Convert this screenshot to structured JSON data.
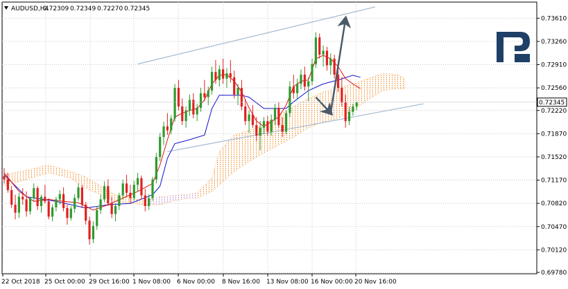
{
  "header": {
    "symbol": "AUDUSD,H4",
    "open": "0.72309",
    "high": "0.72349",
    "low": "0.72270",
    "close": "0.72345"
  },
  "brand": {
    "logo_letter": "R",
    "color": "#1e3f66"
  },
  "colors": {
    "bull_candle": "#2e9a2e",
    "bear_candle": "#e02020",
    "tenkan": "#e11010",
    "kijun": "#1010cc",
    "cloud_bull": "#f5a04a",
    "cloud_bear": "#c9a0dc",
    "channel": "#a9bfd4",
    "forecast_arrow": "#4a5a6a",
    "grid": "#c8c8c8"
  },
  "chart_data": {
    "type": "candlestick",
    "instrument": "AUDUSD",
    "timeframe": "H4",
    "ylim": [
      0.6978,
      0.7378
    ],
    "y_ticks": [
      "0.73610",
      "0.73260",
      "0.72910",
      "0.72560",
      "0.72220",
      "0.71870",
      "0.71520",
      "0.71170",
      "0.70820",
      "0.70470",
      "0.70120",
      "0.69780"
    ],
    "x_ticks": [
      "22 Oct 2018",
      "25 Oct 00:00",
      "29 Oct 16:00",
      "1 Nov 08:00",
      "6 Nov 00:00",
      "8 Nov 16:00",
      "13 Nov 08:00",
      "16 Nov 00:00",
      "20 Nov 16:00"
    ],
    "current_price": "0.72345",
    "grid": true,
    "series_key": [
      {
        "id": "tenkan",
        "color": "#e11010"
      },
      {
        "id": "kijun",
        "color": "#1010cc"
      },
      {
        "id": "cloud",
        "color": "#f5a04a"
      }
    ],
    "ohlc": [
      [
        0.7123,
        0.7135,
        0.7112,
        0.7118
      ],
      [
        0.7118,
        0.7128,
        0.7098,
        0.7102
      ],
      [
        0.7102,
        0.7108,
        0.7075,
        0.708
      ],
      [
        0.708,
        0.7095,
        0.7058,
        0.7068
      ],
      [
        0.7068,
        0.7098,
        0.706,
        0.7092
      ],
      [
        0.7092,
        0.7105,
        0.708,
        0.7088
      ],
      [
        0.7088,
        0.71,
        0.7062,
        0.707
      ],
      [
        0.707,
        0.7092,
        0.7065,
        0.709
      ],
      [
        0.709,
        0.7112,
        0.7085,
        0.7105
      ],
      [
        0.7105,
        0.7108,
        0.7072,
        0.7078
      ],
      [
        0.7078,
        0.7095,
        0.7068,
        0.7092
      ],
      [
        0.7092,
        0.711,
        0.7082,
        0.7085
      ],
      [
        0.7085,
        0.709,
        0.7058,
        0.7062
      ],
      [
        0.7062,
        0.708,
        0.7055,
        0.7076
      ],
      [
        0.7076,
        0.7092,
        0.707,
        0.7088
      ],
      [
        0.7088,
        0.7102,
        0.708,
        0.7096
      ],
      [
        0.7096,
        0.7106,
        0.707,
        0.7075
      ],
      [
        0.7075,
        0.708,
        0.705,
        0.706
      ],
      [
        0.706,
        0.7078,
        0.7056,
        0.7074
      ],
      [
        0.7074,
        0.7096,
        0.7068,
        0.709
      ],
      [
        0.709,
        0.7112,
        0.7086,
        0.7106
      ],
      [
        0.7106,
        0.711,
        0.7075,
        0.708
      ],
      [
        0.708,
        0.7084,
        0.705,
        0.7056
      ],
      [
        0.7056,
        0.7062,
        0.702,
        0.7028
      ],
      [
        0.7028,
        0.7055,
        0.7022,
        0.7048
      ],
      [
        0.7048,
        0.7078,
        0.7042,
        0.7072
      ],
      [
        0.7072,
        0.7095,
        0.7066,
        0.7088
      ],
      [
        0.7088,
        0.7115,
        0.7084,
        0.7108
      ],
      [
        0.7108,
        0.7118,
        0.7078,
        0.7082
      ],
      [
        0.7082,
        0.7092,
        0.706,
        0.7066
      ],
      [
        0.7066,
        0.7082,
        0.7055,
        0.7078
      ],
      [
        0.7078,
        0.7098,
        0.7072,
        0.7094
      ],
      [
        0.7094,
        0.7118,
        0.7088,
        0.7112
      ],
      [
        0.7112,
        0.7125,
        0.7092,
        0.7098
      ],
      [
        0.7098,
        0.711,
        0.7082,
        0.709
      ],
      [
        0.709,
        0.7116,
        0.7086,
        0.711
      ],
      [
        0.711,
        0.7128,
        0.71,
        0.712
      ],
      [
        0.712,
        0.7124,
        0.7088,
        0.7094
      ],
      [
        0.7094,
        0.7104,
        0.707,
        0.7078
      ],
      [
        0.7078,
        0.7096,
        0.7072,
        0.709
      ],
      [
        0.709,
        0.7122,
        0.7086,
        0.7118
      ],
      [
        0.7118,
        0.7158,
        0.7112,
        0.7152
      ],
      [
        0.7152,
        0.7188,
        0.7146,
        0.7182
      ],
      [
        0.7182,
        0.7205,
        0.717,
        0.7198
      ],
      [
        0.7198,
        0.7218,
        0.7185,
        0.7192
      ],
      [
        0.7192,
        0.7215,
        0.7186,
        0.721
      ],
      [
        0.721,
        0.7262,
        0.7205,
        0.7256
      ],
      [
        0.7256,
        0.7268,
        0.7222,
        0.7228
      ],
      [
        0.7228,
        0.724,
        0.72,
        0.7206
      ],
      [
        0.7206,
        0.7228,
        0.7196,
        0.7222
      ],
      [
        0.7222,
        0.7246,
        0.7214,
        0.7238
      ],
      [
        0.7238,
        0.7248,
        0.721,
        0.7216
      ],
      [
        0.7216,
        0.7232,
        0.7206,
        0.7226
      ],
      [
        0.7226,
        0.7256,
        0.722,
        0.7248
      ],
      [
        0.7248,
        0.7268,
        0.7236,
        0.7242
      ],
      [
        0.7242,
        0.7258,
        0.723,
        0.7252
      ],
      [
        0.7252,
        0.7288,
        0.7246,
        0.728
      ],
      [
        0.728,
        0.7298,
        0.7262,
        0.7268
      ],
      [
        0.7268,
        0.729,
        0.7258,
        0.7284
      ],
      [
        0.7284,
        0.73,
        0.7262,
        0.727
      ],
      [
        0.727,
        0.7286,
        0.7256,
        0.7278
      ],
      [
        0.7278,
        0.7298,
        0.7264,
        0.7272
      ],
      [
        0.7272,
        0.7282,
        0.724,
        0.7246
      ],
      [
        0.7246,
        0.7262,
        0.723,
        0.7256
      ],
      [
        0.7256,
        0.7268,
        0.7222,
        0.7228
      ],
      [
        0.7228,
        0.7238,
        0.72,
        0.7206
      ],
      [
        0.7206,
        0.7222,
        0.7188,
        0.7216
      ],
      [
        0.7216,
        0.723,
        0.7196,
        0.72
      ],
      [
        0.72,
        0.7212,
        0.7176,
        0.7184
      ],
      [
        0.7184,
        0.7206,
        0.7162,
        0.7196
      ],
      [
        0.7196,
        0.7212,
        0.7186,
        0.7206
      ],
      [
        0.7206,
        0.7214,
        0.7184,
        0.719
      ],
      [
        0.719,
        0.7216,
        0.7184,
        0.7208
      ],
      [
        0.7208,
        0.7232,
        0.72,
        0.7226
      ],
      [
        0.7226,
        0.7234,
        0.7196,
        0.72
      ],
      [
        0.72,
        0.7212,
        0.7182,
        0.719
      ],
      [
        0.719,
        0.7222,
        0.7186,
        0.7218
      ],
      [
        0.7218,
        0.7266,
        0.7212,
        0.7258
      ],
      [
        0.7258,
        0.7276,
        0.724,
        0.7248
      ],
      [
        0.7248,
        0.727,
        0.7238,
        0.7262
      ],
      [
        0.7262,
        0.7284,
        0.7254,
        0.7276
      ],
      [
        0.7276,
        0.7288,
        0.7252,
        0.7258
      ],
      [
        0.7258,
        0.7272,
        0.7236,
        0.7266
      ],
      [
        0.7266,
        0.73,
        0.726,
        0.7292
      ],
      [
        0.7292,
        0.734,
        0.7286,
        0.7332
      ],
      [
        0.7332,
        0.7338,
        0.73,
        0.7306
      ],
      [
        0.7306,
        0.732,
        0.7288,
        0.7312
      ],
      [
        0.7312,
        0.7318,
        0.7282,
        0.729
      ],
      [
        0.729,
        0.7308,
        0.7276,
        0.73
      ],
      [
        0.73,
        0.7306,
        0.727,
        0.7276
      ],
      [
        0.7276,
        0.7292,
        0.725,
        0.7256
      ],
      [
        0.7256,
        0.7272,
        0.7228,
        0.7234
      ],
      [
        0.7234,
        0.7246,
        0.7196,
        0.7206
      ],
      [
        0.7206,
        0.7228,
        0.72,
        0.722
      ],
      [
        0.722,
        0.7232,
        0.7214,
        0.7228
      ],
      [
        0.7228,
        0.7235,
        0.7222,
        0.7234
      ]
    ],
    "tenkan_points": [
      [
        0,
        0.7128
      ],
      [
        4,
        0.71
      ],
      [
        8,
        0.7085
      ],
      [
        12,
        0.7088
      ],
      [
        16,
        0.7085
      ],
      [
        20,
        0.7083
      ],
      [
        24,
        0.7072
      ],
      [
        28,
        0.708
      ],
      [
        32,
        0.709
      ],
      [
        36,
        0.71
      ],
      [
        40,
        0.7112
      ],
      [
        42,
        0.714
      ],
      [
        44,
        0.7178
      ],
      [
        46,
        0.7212
      ],
      [
        48,
        0.7218
      ],
      [
        50,
        0.7222
      ],
      [
        52,
        0.7225
      ],
      [
        54,
        0.7238
      ],
      [
        56,
        0.7262
      ],
      [
        58,
        0.7275
      ],
      [
        60,
        0.7276
      ],
      [
        62,
        0.7266
      ],
      [
        64,
        0.725
      ],
      [
        66,
        0.7226
      ],
      [
        68,
        0.7206
      ],
      [
        70,
        0.7198
      ],
      [
        72,
        0.7205
      ],
      [
        74,
        0.7212
      ],
      [
        76,
        0.723
      ],
      [
        78,
        0.7258
      ],
      [
        80,
        0.7266
      ],
      [
        82,
        0.7268
      ],
      [
        84,
        0.73
      ],
      [
        86,
        0.7305
      ],
      [
        88,
        0.73
      ],
      [
        90,
        0.7288
      ],
      [
        92,
        0.727
      ],
      [
        94,
        0.7262
      ],
      [
        96,
        0.7255
      ]
    ],
    "kijun_points": [
      [
        0,
        0.7125
      ],
      [
        6,
        0.7092
      ],
      [
        14,
        0.7085
      ],
      [
        22,
        0.7075
      ],
      [
        28,
        0.708
      ],
      [
        34,
        0.7082
      ],
      [
        40,
        0.7095
      ],
      [
        42,
        0.7108
      ],
      [
        44,
        0.715
      ],
      [
        46,
        0.7172
      ],
      [
        50,
        0.7178
      ],
      [
        54,
        0.7185
      ],
      [
        56,
        0.7225
      ],
      [
        58,
        0.7245
      ],
      [
        60,
        0.7245
      ],
      [
        64,
        0.7245
      ],
      [
        66,
        0.7242
      ],
      [
        70,
        0.7225
      ],
      [
        76,
        0.7225
      ],
      [
        78,
        0.7235
      ],
      [
        82,
        0.7252
      ],
      [
        86,
        0.7262
      ],
      [
        90,
        0.7268
      ],
      [
        94,
        0.7275
      ],
      [
        96,
        0.7272
      ]
    ],
    "cloud": [
      [
        0,
        0.7125,
        0.7108
      ],
      [
        6,
        0.7132,
        0.7118
      ],
      [
        12,
        0.714,
        0.7128
      ],
      [
        18,
        0.713,
        0.712
      ],
      [
        22,
        0.7122,
        0.7105
      ],
      [
        26,
        0.7108,
        0.7095
      ],
      [
        30,
        0.7095,
        0.7085
      ],
      [
        34,
        0.709,
        0.7082
      ],
      [
        38,
        0.7086,
        0.708
      ],
      [
        42,
        0.7092,
        0.708
      ],
      [
        46,
        0.7094,
        0.7086
      ],
      [
        50,
        0.7096,
        0.709
      ],
      [
        52,
        0.7098,
        0.709
      ],
      [
        56,
        0.712,
        0.71
      ],
      [
        58,
        0.716,
        0.711
      ],
      [
        62,
        0.7185,
        0.713
      ],
      [
        66,
        0.7192,
        0.7145
      ],
      [
        70,
        0.72,
        0.7158
      ],
      [
        74,
        0.7215,
        0.717
      ],
      [
        78,
        0.7228,
        0.7182
      ],
      [
        82,
        0.724,
        0.7196
      ],
      [
        86,
        0.725,
        0.7205
      ],
      [
        90,
        0.7256,
        0.721
      ],
      [
        94,
        0.7262,
        0.7222
      ],
      [
        98,
        0.727,
        0.7238
      ],
      [
        102,
        0.7278,
        0.7252
      ],
      [
        106,
        0.7276,
        0.7255
      ],
      [
        108,
        0.727,
        0.7255
      ]
    ],
    "channel_lines": [
      [
        [
          36,
          0.7292
        ],
        [
          100,
          0.7378
        ]
      ],
      [
        [
          44,
          0.716
        ],
        [
          113,
          0.7232
        ]
      ]
    ],
    "forecast_path": [
      [
        84,
        0.7242
      ],
      [
        88,
        0.7218
      ],
      [
        92,
        0.736
      ]
    ]
  }
}
